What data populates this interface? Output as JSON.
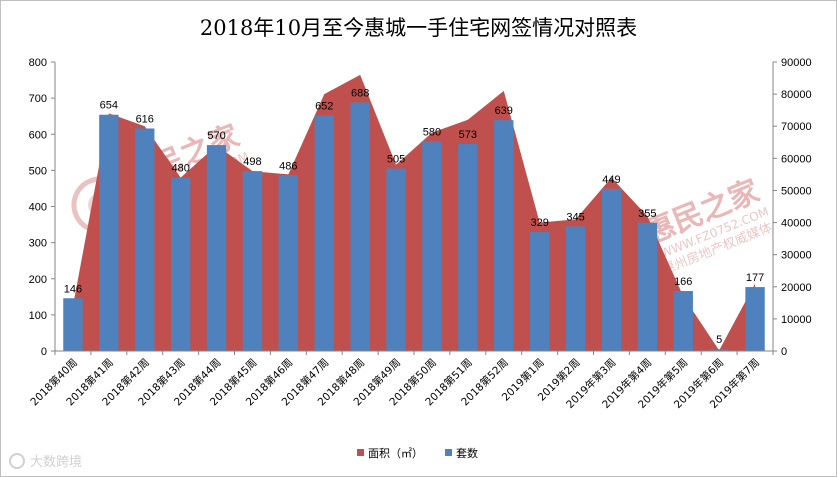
{
  "chart_data": {
    "type": "bar+area",
    "title": "2018年10月至今惠城一手住宅网签情况对照表",
    "categories": [
      "2018第40周",
      "2018第41周",
      "2018第42周",
      "2018第43周",
      "2018第44周",
      "2018第45周",
      "2018第46周",
      "2018第47周",
      "2018第48周",
      "2018第49周",
      "2018第50周",
      "2018第51周",
      "2018第52周",
      "2019第1周",
      "2019第2周",
      "2019年第3周",
      "2019年第4周",
      "2019年第5周",
      "2019年第6周",
      "2019年第7周"
    ],
    "series": [
      {
        "name": "面积（㎡）",
        "kind": "area",
        "axis": "right",
        "color": "#c0504d",
        "values": [
          14000,
          74000,
          70000,
          54000,
          64000,
          56000,
          55000,
          80000,
          86000,
          58000,
          68000,
          72000,
          81000,
          40000,
          41000,
          54000,
          42000,
          17000,
          200,
          21000
        ]
      },
      {
        "name": "套数",
        "kind": "bar",
        "axis": "left",
        "color": "#4f81bd",
        "values": [
          146,
          654,
          616,
          480,
          570,
          498,
          486,
          652,
          688,
          505,
          580,
          573,
          639,
          329,
          345,
          449,
          355,
          166,
          5,
          177
        ]
      }
    ],
    "y_left": {
      "min": 0,
      "max": 800,
      "step": 100
    },
    "y_right": {
      "min": 0,
      "max": 90000,
      "step": 10000
    },
    "legend": "bottom-center",
    "grid": false
  },
  "watermark": {
    "brand": "惠民之家",
    "url": "WWW.FZ0752.COM",
    "sub": "惠州房地产权威媒体"
  },
  "corner_badge": "大数跨境"
}
